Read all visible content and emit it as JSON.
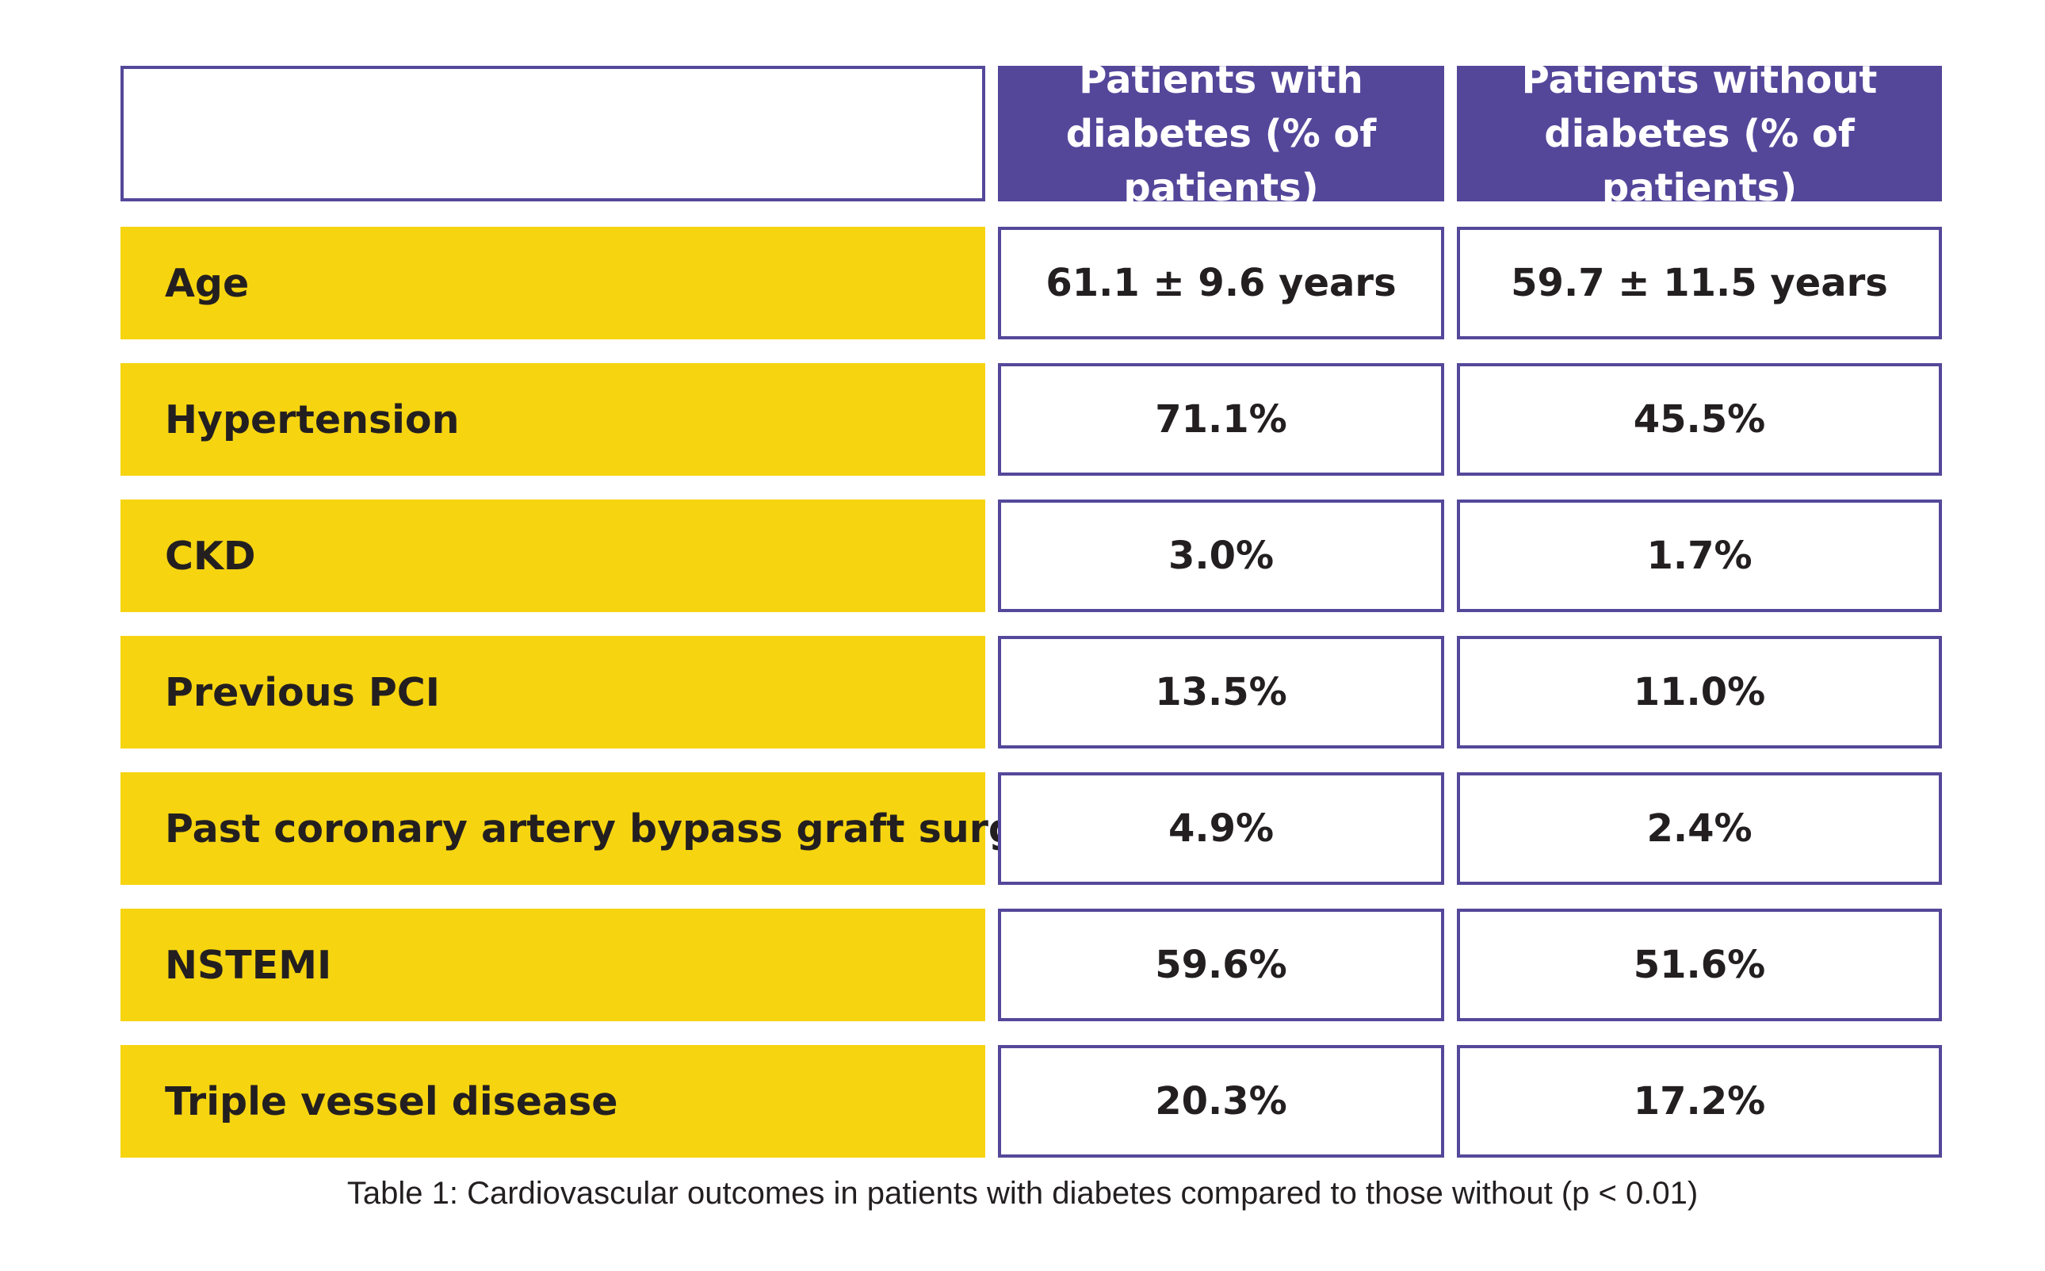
{
  "colors": {
    "header_bg": "#54479a",
    "label_bg": "#f6d410",
    "border": "#54489a",
    "text": "#231f20"
  },
  "chart_data": {
    "type": "table",
    "columns": [
      "Patients with diabetes (% of patients)",
      "Patients without diabetes (% of patients)"
    ],
    "rows": [
      {
        "label": "Age",
        "with_diabetes": "61.1 ± 9.6 years",
        "without_diabetes": "59.7 ± 11.5 years"
      },
      {
        "label": "Hypertension",
        "with_diabetes": "71.1%",
        "without_diabetes": "45.5%"
      },
      {
        "label": "CKD",
        "with_diabetes": "3.0%",
        "without_diabetes": "1.7%"
      },
      {
        "label": "Previous PCI",
        "with_diabetes": "13.5%",
        "without_diabetes": "11.0%"
      },
      {
        "label": "Past coronary artery bypass graft surgery",
        "with_diabetes": "4.9%",
        "without_diabetes": "2.4%"
      },
      {
        "label": "NSTEMI",
        "with_diabetes": "59.6%",
        "without_diabetes": "51.6%"
      },
      {
        "label": "Triple vessel disease",
        "with_diabetes": "20.3%",
        "without_diabetes": "17.2%"
      }
    ],
    "caption": "Table 1: Cardiovascular outcomes in patients with diabetes compared to those without (p < 0.01)"
  }
}
